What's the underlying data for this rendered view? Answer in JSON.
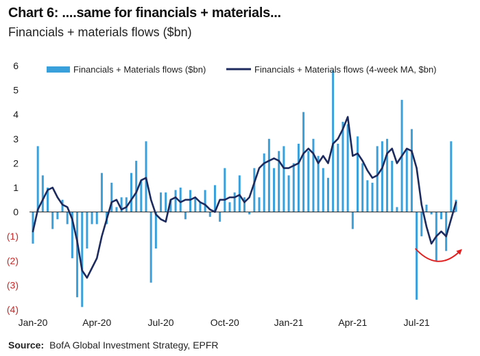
{
  "chart_data": {
    "type": "bar+line",
    "title": "Chart 6: ....same for financials + materials...",
    "subtitle": "Financials + materials flows ($bn)",
    "source_label": "Source:",
    "source_text": "BofA Global Investment Strategy, EPFR",
    "ylim": [
      -4,
      6
    ],
    "yticks": [
      {
        "value": 6,
        "label": "6"
      },
      {
        "value": 5,
        "label": "5"
      },
      {
        "value": 4,
        "label": "4"
      },
      {
        "value": 3,
        "label": "3"
      },
      {
        "value": 2,
        "label": "2"
      },
      {
        "value": 1,
        "label": "1"
      },
      {
        "value": 0,
        "label": "0"
      },
      {
        "value": -1,
        "label": "(1)"
      },
      {
        "value": -2,
        "label": "(2)"
      },
      {
        "value": -3,
        "label": "(3)"
      },
      {
        "value": -4,
        "label": "(4)"
      }
    ],
    "xticks": [
      {
        "week": 0,
        "label": "Jan-20"
      },
      {
        "week": 13,
        "label": "Apr-20"
      },
      {
        "week": 26,
        "label": "Jul-20"
      },
      {
        "week": 39,
        "label": "Oct-20"
      },
      {
        "week": 52,
        "label": "Jan-21"
      },
      {
        "week": 65,
        "label": "Apr-21"
      },
      {
        "week": 78,
        "label": "Jul-21"
      }
    ],
    "series": [
      {
        "name": "Financials + Materials flows ($bn)",
        "kind": "bar",
        "color": "#3aa0dc",
        "values": [
          -1.3,
          2.7,
          1.5,
          1.0,
          -0.7,
          -0.3,
          0.5,
          -0.5,
          -1.9,
          -3.5,
          -3.9,
          -1.5,
          -0.5,
          -0.5,
          1.6,
          -0.5,
          1.2,
          0.2,
          0.6,
          0.6,
          1.6,
          2.1,
          1.3,
          2.9,
          -2.9,
          -1.5,
          0.8,
          0.8,
          0.5,
          0.9,
          1.0,
          -0.3,
          0.9,
          0.6,
          0.4,
          0.9,
          -0.2,
          1.1,
          -0.4,
          1.8,
          0.4,
          0.8,
          1.5,
          0.6,
          -0.1,
          1.8,
          0.6,
          2.4,
          3.0,
          1.8,
          2.5,
          2.7,
          1.5,
          2.0,
          2.8,
          4.1,
          2.5,
          3.0,
          2.3,
          1.8,
          1.4,
          5.8,
          2.8,
          3.7,
          3.6,
          -0.7,
          3.1,
          2.0,
          1.3,
          1.2,
          2.7,
          2.9,
          3.0,
          2.1,
          0.2,
          4.6,
          2.6,
          3.4,
          -3.6,
          -1.0,
          0.3,
          -0.1,
          -2.0,
          -0.3,
          -1.6,
          2.9,
          0.5
        ]
      },
      {
        "name": "Financials + Materials flows (4-week MA, $bn)",
        "kind": "line",
        "color": "#1c2a5e",
        "values": [
          -0.8,
          0.1,
          0.5,
          0.9,
          1.0,
          0.6,
          0.3,
          0.2,
          -0.3,
          -1.2,
          -2.4,
          -2.7,
          -2.3,
          -1.9,
          -1.0,
          -0.3,
          0.4,
          0.5,
          0.1,
          0.2,
          0.5,
          0.8,
          1.3,
          1.4,
          0.5,
          -0.1,
          -0.3,
          -0.4,
          0.5,
          0.6,
          0.4,
          0.5,
          0.5,
          0.6,
          0.4,
          0.3,
          0.1,
          0.0,
          0.5,
          0.5,
          0.6,
          0.6,
          0.7,
          0.4,
          0.6,
          1.2,
          1.8,
          2.0,
          2.1,
          2.2,
          2.1,
          1.8,
          1.8,
          1.9,
          2.0,
          2.4,
          2.6,
          2.4,
          2.0,
          2.3,
          2.0,
          2.8,
          3.0,
          3.4,
          3.9,
          2.3,
          2.4,
          2.1,
          1.7,
          1.4,
          1.5,
          1.8,
          2.4,
          2.6,
          2.0,
          2.3,
          2.6,
          2.5,
          1.8,
          0.3,
          -0.6,
          -1.3,
          -1.0,
          -0.8,
          -1.0,
          -0.3,
          0.4
        ]
      }
    ],
    "annotation": {
      "type": "red-curved-arrow",
      "color": "#e02020",
      "from_week": 78,
      "to_week": 86
    }
  }
}
